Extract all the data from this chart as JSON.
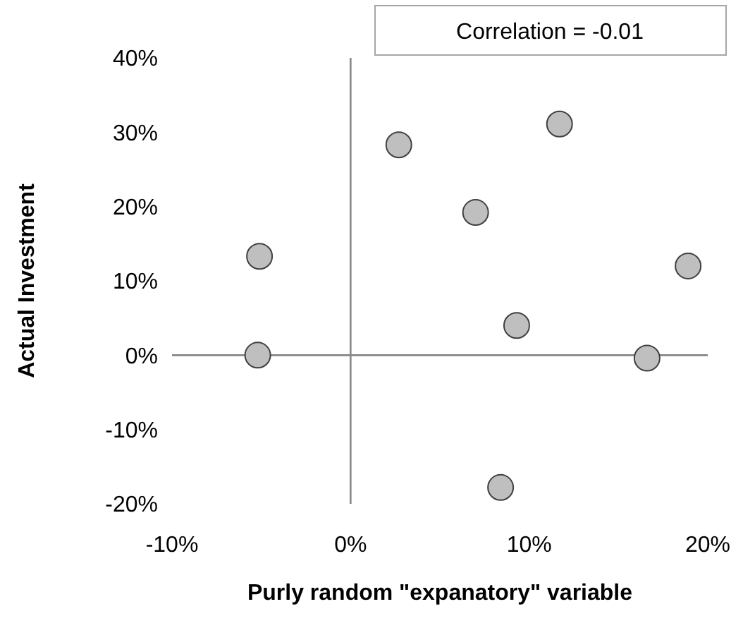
{
  "chart_data": {
    "type": "scatter",
    "xlabel": "Purly random \"expanatory\" variable",
    "ylabel": "Actual Investment",
    "x": [
      -5.2,
      -5.1,
      2.7,
      7.0,
      11.7,
      9.3,
      8.4,
      16.6,
      18.9
    ],
    "values": [
      0,
      13.3,
      28.3,
      19.2,
      31.1,
      4.0,
      -17.8,
      -0.4,
      12.0
    ],
    "color": "#bfbfbf",
    "marker": "circle",
    "xlim": [
      -10,
      20
    ],
    "xticks": [
      {
        "value": -10,
        "label": "-10%"
      },
      {
        "value": 0,
        "label": "0%"
      },
      {
        "value": 10,
        "label": "10%"
      },
      {
        "value": 20,
        "label": "20%"
      }
    ],
    "ylim": [
      -20,
      40
    ],
    "yticks": [
      {
        "value": -20,
        "label": "-20%"
      },
      {
        "value": -10,
        "label": "-10%"
      },
      {
        "value": 0,
        "label": "0%"
      },
      {
        "value": 10,
        "label": "10%"
      },
      {
        "value": 20,
        "label": "20%"
      },
      {
        "value": 30,
        "label": "30%"
      },
      {
        "value": 40,
        "label": "40%"
      }
    ],
    "annotations": [
      "Correlation = -0.01"
    ]
  }
}
